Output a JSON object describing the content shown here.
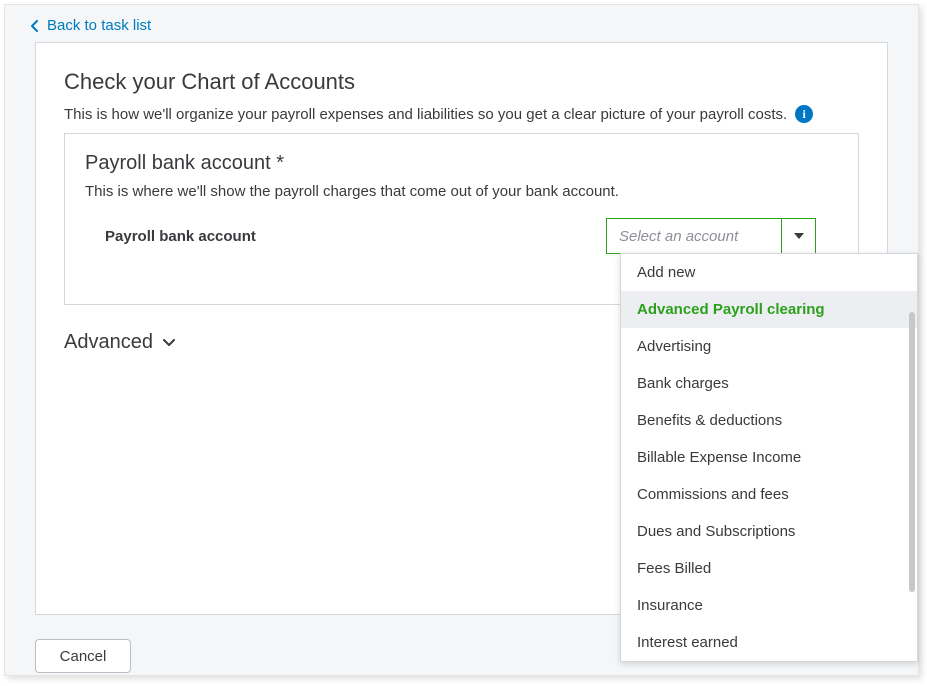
{
  "nav": {
    "back_label": "Back to task list"
  },
  "page": {
    "title": "Check your Chart of Accounts",
    "subtitle": "This is how we'll organize your payroll expenses and liabilities so you get a clear picture of your payroll costs."
  },
  "card": {
    "title": "Payroll bank account *",
    "subtitle": "This is where we'll show the payroll charges that come out of your bank account.",
    "field_label": "Payroll bank account",
    "placeholder": "Select an account"
  },
  "advanced": {
    "label": "Advanced"
  },
  "dropdown": {
    "highlighted_index": 1,
    "items": [
      "Add new",
      "Advanced Payroll clearing",
      "Advertising",
      "Bank charges",
      "Benefits & deductions",
      "Billable Expense Income",
      "Commissions and fees",
      "Dues and Subscriptions",
      "Fees Billed",
      "Insurance",
      "Interest earned"
    ]
  },
  "footer": {
    "cancel_label": "Cancel"
  },
  "colors": {
    "link": "#007ac0",
    "accent": "#2ca01c",
    "info_bg": "#0077c5",
    "border": "#d4d7dc",
    "body_bg": "#f4f6f8",
    "text": "#393a3d",
    "placeholder": "#8d9096",
    "highlight_bg": "#eceef1"
  }
}
